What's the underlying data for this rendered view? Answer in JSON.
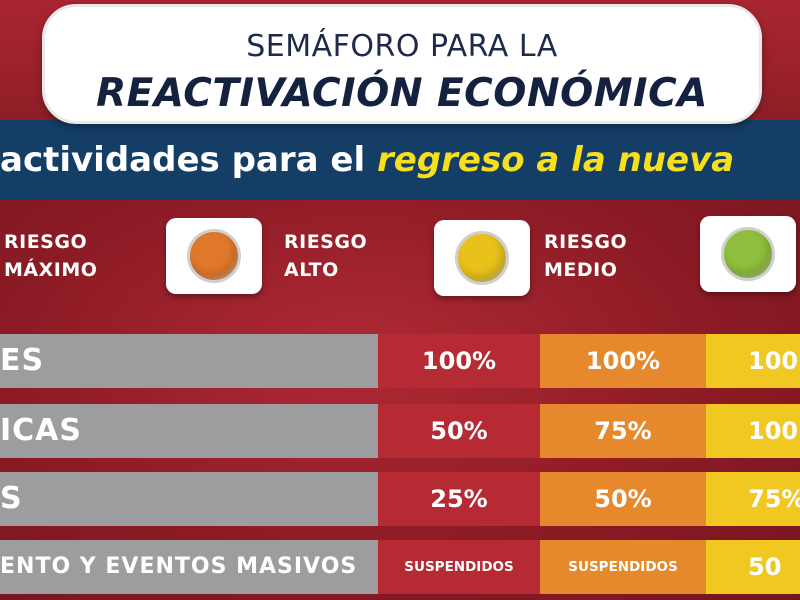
{
  "header": {
    "title_line1": "SEMÁFORO PARA LA",
    "title_line2": "REACTIVACIÓN ECONÓMICA"
  },
  "subtitle": {
    "lead": "actividades para el ",
    "highlight": "regreso a la nueva"
  },
  "levels": [
    {
      "line1": "RIESGO",
      "line2": "MÁXIMO",
      "color": "#e0782a"
    },
    {
      "line1": "RIESGO",
      "line2": "ALTO",
      "color": "#e8c21a"
    },
    {
      "line1": "RIESGO",
      "line2": "MEDIO",
      "color": "#8fbf3c"
    }
  ],
  "rows": [
    {
      "name": "ES",
      "maximo": "100%",
      "alto": "100%",
      "medio": "100"
    },
    {
      "name": "ICAS",
      "maximo": "50%",
      "alto": "75%",
      "medio": "100"
    },
    {
      "name": "S",
      "maximo": "25%",
      "alto": "50%",
      "medio": "75%"
    },
    {
      "name": "ENTO Y EVENTOS MASIVOS",
      "maximo": "SUSPENDIDOS",
      "alto": "SUSPENDIDOS",
      "medio": "50"
    }
  ]
}
